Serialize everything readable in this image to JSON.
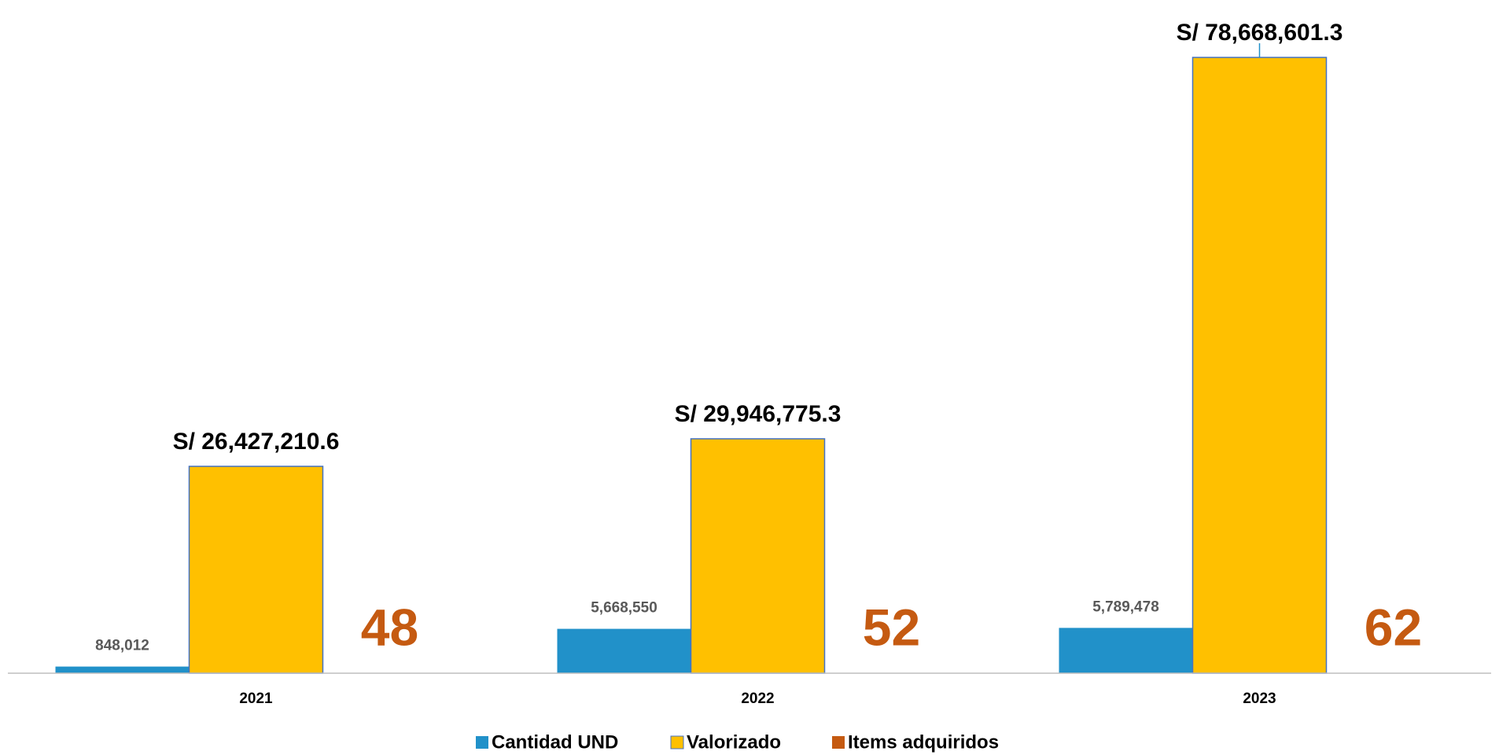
{
  "chart_data": {
    "type": "bar",
    "categories": [
      "2021",
      "2022",
      "2023"
    ],
    "series": [
      {
        "name": "Cantidad UND",
        "color": "#2191c9",
        "values": [
          848012,
          5668550,
          5789478
        ],
        "value_labels": [
          "848,012",
          "5,668,550",
          "5,789,478"
        ]
      },
      {
        "name": "Valorizado",
        "color": "#ffc000",
        "values": [
          26427210.6,
          29946775.3,
          78668601.3
        ],
        "value_labels": [
          "S/ 26,427,210.6",
          "S/ 29,946,775.3",
          "S/ 78,668,601.3"
        ]
      },
      {
        "name": "Items adquiridos",
        "color": "#c55a11",
        "values": [
          48,
          52,
          62
        ]
      }
    ],
    "legend": "bottom"
  }
}
